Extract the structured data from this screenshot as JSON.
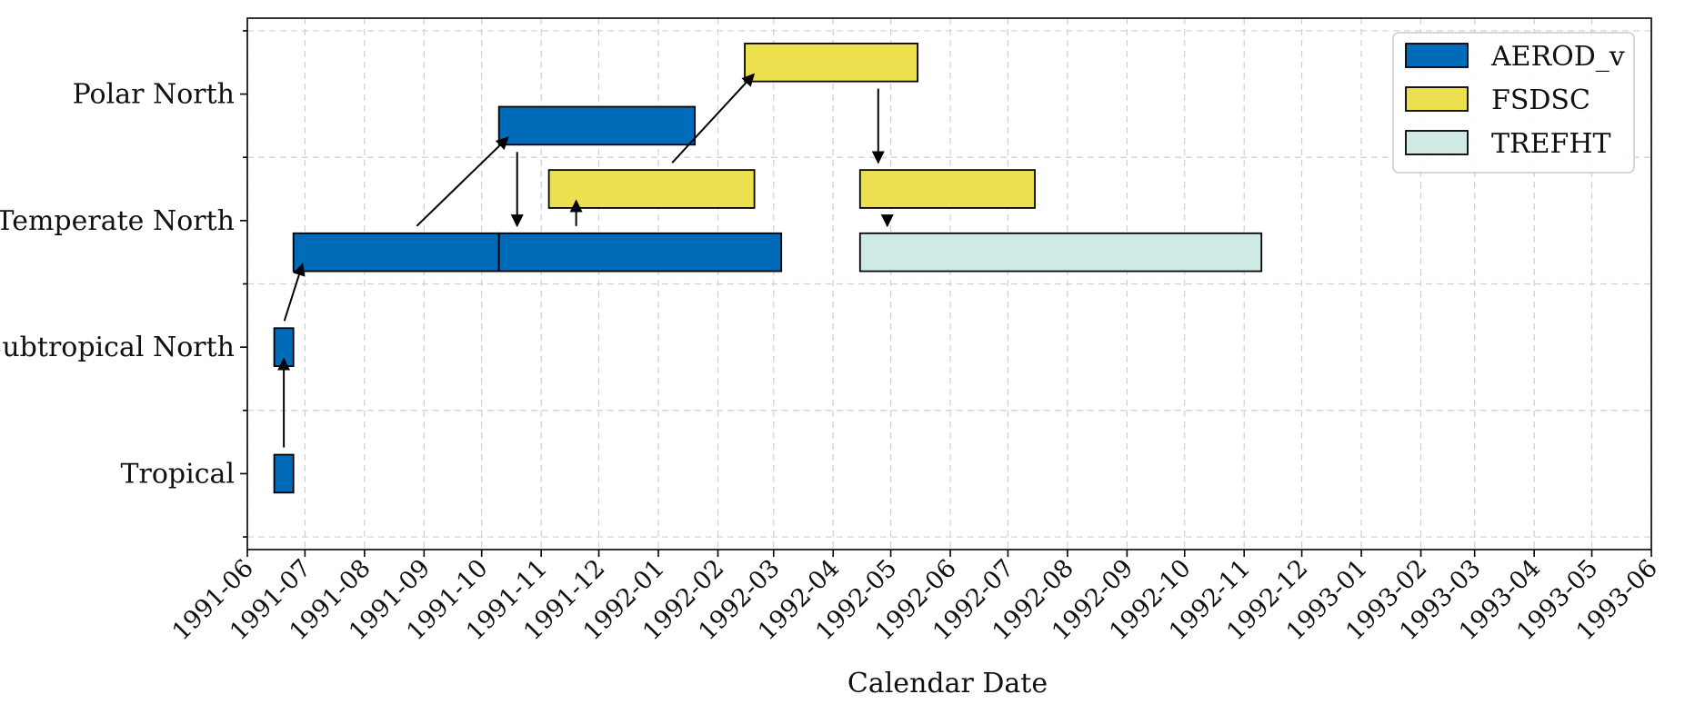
{
  "chart_data": {
    "type": "gantt",
    "title": "",
    "xlabel": "Calendar Date",
    "ylabel": "",
    "xlim": [
      "1991-06-01",
      "1993-06-01"
    ],
    "x_ticks": [
      "1991-06",
      "1991-07",
      "1991-08",
      "1991-09",
      "1991-10",
      "1991-11",
      "1991-12",
      "1992-01",
      "1992-02",
      "1992-03",
      "1992-04",
      "1992-05",
      "1992-06",
      "1992-07",
      "1992-08",
      "1992-09",
      "1992-10",
      "1992-11",
      "1992-12",
      "1993-01",
      "1993-02",
      "1993-03",
      "1993-04",
      "1993-05",
      "1993-06"
    ],
    "categories": [
      "Tropical",
      "Subtropical North",
      "Temperate North",
      "Polar North"
    ],
    "grid": true,
    "legend_position": "top-right",
    "series": [
      {
        "name": "AEROD_v",
        "color": "#006bb8"
      },
      {
        "name": "FSDSC",
        "color": "#ede04e"
      },
      {
        "name": "TREFHT",
        "color": "#cfe9e5"
      }
    ],
    "bars": [
      {
        "id": "b1",
        "series": "AEROD_v",
        "region": "Tropical",
        "level": 0,
        "start": "1991-06-15",
        "end": "1991-06-25"
      },
      {
        "id": "b2",
        "series": "AEROD_v",
        "region": "Subtropical North",
        "level": 0,
        "start": "1991-06-15",
        "end": "1991-06-25"
      },
      {
        "id": "b3",
        "series": "AEROD_v",
        "region": "Temperate North",
        "level": -0.25,
        "start": "1991-06-25",
        "end": "1991-10-10"
      },
      {
        "id": "b4",
        "series": "AEROD_v",
        "region": "Polar North",
        "level": -0.25,
        "start": "1991-10-10",
        "end": "1992-01-20"
      },
      {
        "id": "b5",
        "series": "AEROD_v",
        "region": "Temperate North",
        "level": -0.25,
        "start": "1991-10-10",
        "end": "1992-03-05"
      },
      {
        "id": "b6",
        "series": "FSDSC",
        "region": "Temperate North",
        "level": 0.25,
        "start": "1991-11-05",
        "end": "1992-02-20"
      },
      {
        "id": "b7",
        "series": "FSDSC",
        "region": "Polar North",
        "level": 0.25,
        "start": "1992-02-15",
        "end": "1992-05-15"
      },
      {
        "id": "b8",
        "series": "FSDSC",
        "region": "Temperate North",
        "level": 0.25,
        "start": "1992-04-15",
        "end": "1992-07-15"
      },
      {
        "id": "b9",
        "series": "TREFHT",
        "region": "Temperate North",
        "level": -0.25,
        "start": "1992-04-15",
        "end": "1992-11-10"
      }
    ],
    "links": [
      {
        "from": "b1",
        "to": "b2"
      },
      {
        "from": "b2",
        "to": "b3"
      },
      {
        "from": "b3",
        "to": "b4"
      },
      {
        "from": "b4",
        "to": "b5"
      },
      {
        "from": "b5",
        "to": "b6"
      },
      {
        "from": "b6",
        "to": "b7"
      },
      {
        "from": "b7",
        "to": "b8"
      },
      {
        "from": "b8",
        "to": "b9"
      }
    ]
  }
}
